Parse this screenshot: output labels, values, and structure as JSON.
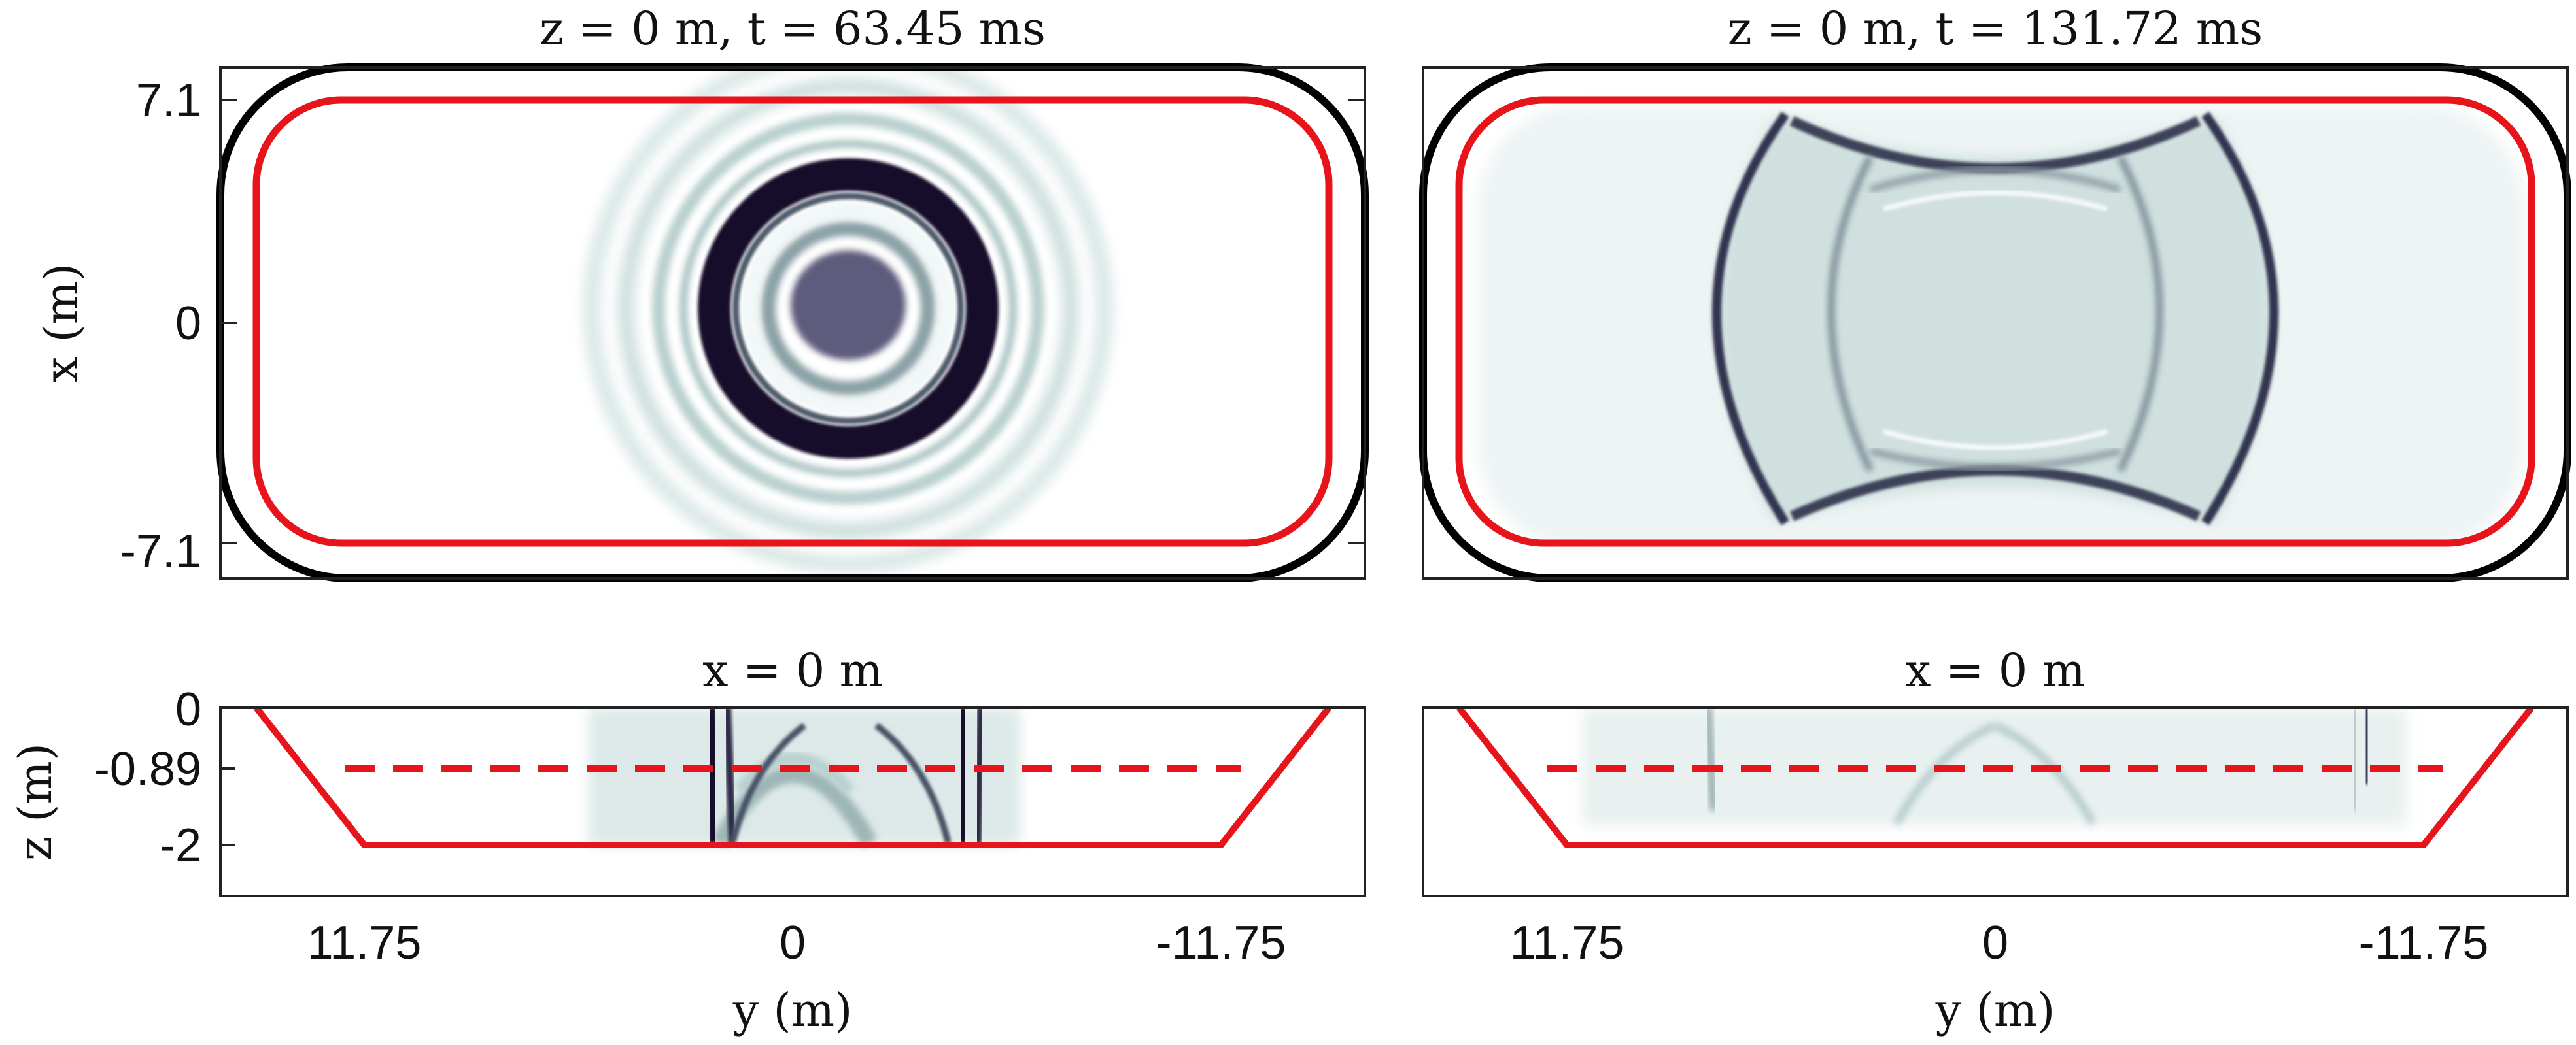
{
  "chart_data": [
    {
      "type": "heatmap",
      "title": "z = 0 m, t = 63.45 ms",
      "ylabel": "x (m)",
      "xlim": [
        14.8,
        -14.8
      ],
      "ylim": [
        -8.2,
        8.2
      ],
      "yticks": [
        {
          "value": 7.1,
          "label": "7.1"
        },
        {
          "value": 0,
          "label": "0"
        },
        {
          "value": -7.1,
          "label": "-7.1"
        }
      ],
      "xticks": [],
      "field": {
        "pattern": "rings",
        "center": [
          -0.6,
          0.7
        ],
        "ring_radii": [
          4.0,
          5.2,
          6.1
        ]
      }
    },
    {
      "type": "heatmap",
      "title": "z = 0 m, t = 131.72 ms",
      "ylabel": "",
      "xlim": [
        14.8,
        -14.8
      ],
      "ylim": [
        -8.2,
        8.2
      ],
      "yticks": [],
      "xticks": [],
      "field": {
        "pattern": "reflections"
      }
    },
    {
      "type": "heatmap",
      "title": "x = 0 m",
      "ylabel": "z (m)",
      "xlabel": "",
      "xlim": [
        15.5,
        -15.5
      ],
      "ylim": [
        -3.0,
        0
      ],
      "yticks": [
        {
          "value": 0,
          "label": "0"
        },
        {
          "value": -0.89,
          "label": "-0.89"
        },
        {
          "value": -2,
          "label": "-2"
        }
      ],
      "xticks": [
        {
          "value": 11.75,
          "label": "11.75"
        },
        {
          "value": 0,
          "label": "0"
        },
        {
          "value": -11.75,
          "label": "-11.75"
        }
      ],
      "field": {
        "pattern": "section-strong"
      }
    },
    {
      "type": "heatmap",
      "title": "x = 0 m",
      "ylabel": "",
      "xlim": [
        15.5,
        -15.5
      ],
      "ylim": [
        -3.0,
        0
      ],
      "yticks": [],
      "xticks": [
        {
          "value": 11.75,
          "label": "11.75"
        },
        {
          "value": 0,
          "label": "0"
        },
        {
          "value": -11.75,
          "label": "-11.75"
        }
      ],
      "field": {
        "pattern": "section-weak"
      }
    }
  ],
  "labels": {
    "ylabel_top": "x (m)",
    "ylabel_bottom": "z (m)",
    "xlabel_left": "y (m)",
    "xlabel_right": "y (m)"
  },
  "colors": {
    "contour": "#e8141c",
    "wall": "#000000",
    "field_dark": "#1f1b3a",
    "field_mid": "#6e7d88",
    "field_light": "#c9dcdc"
  }
}
